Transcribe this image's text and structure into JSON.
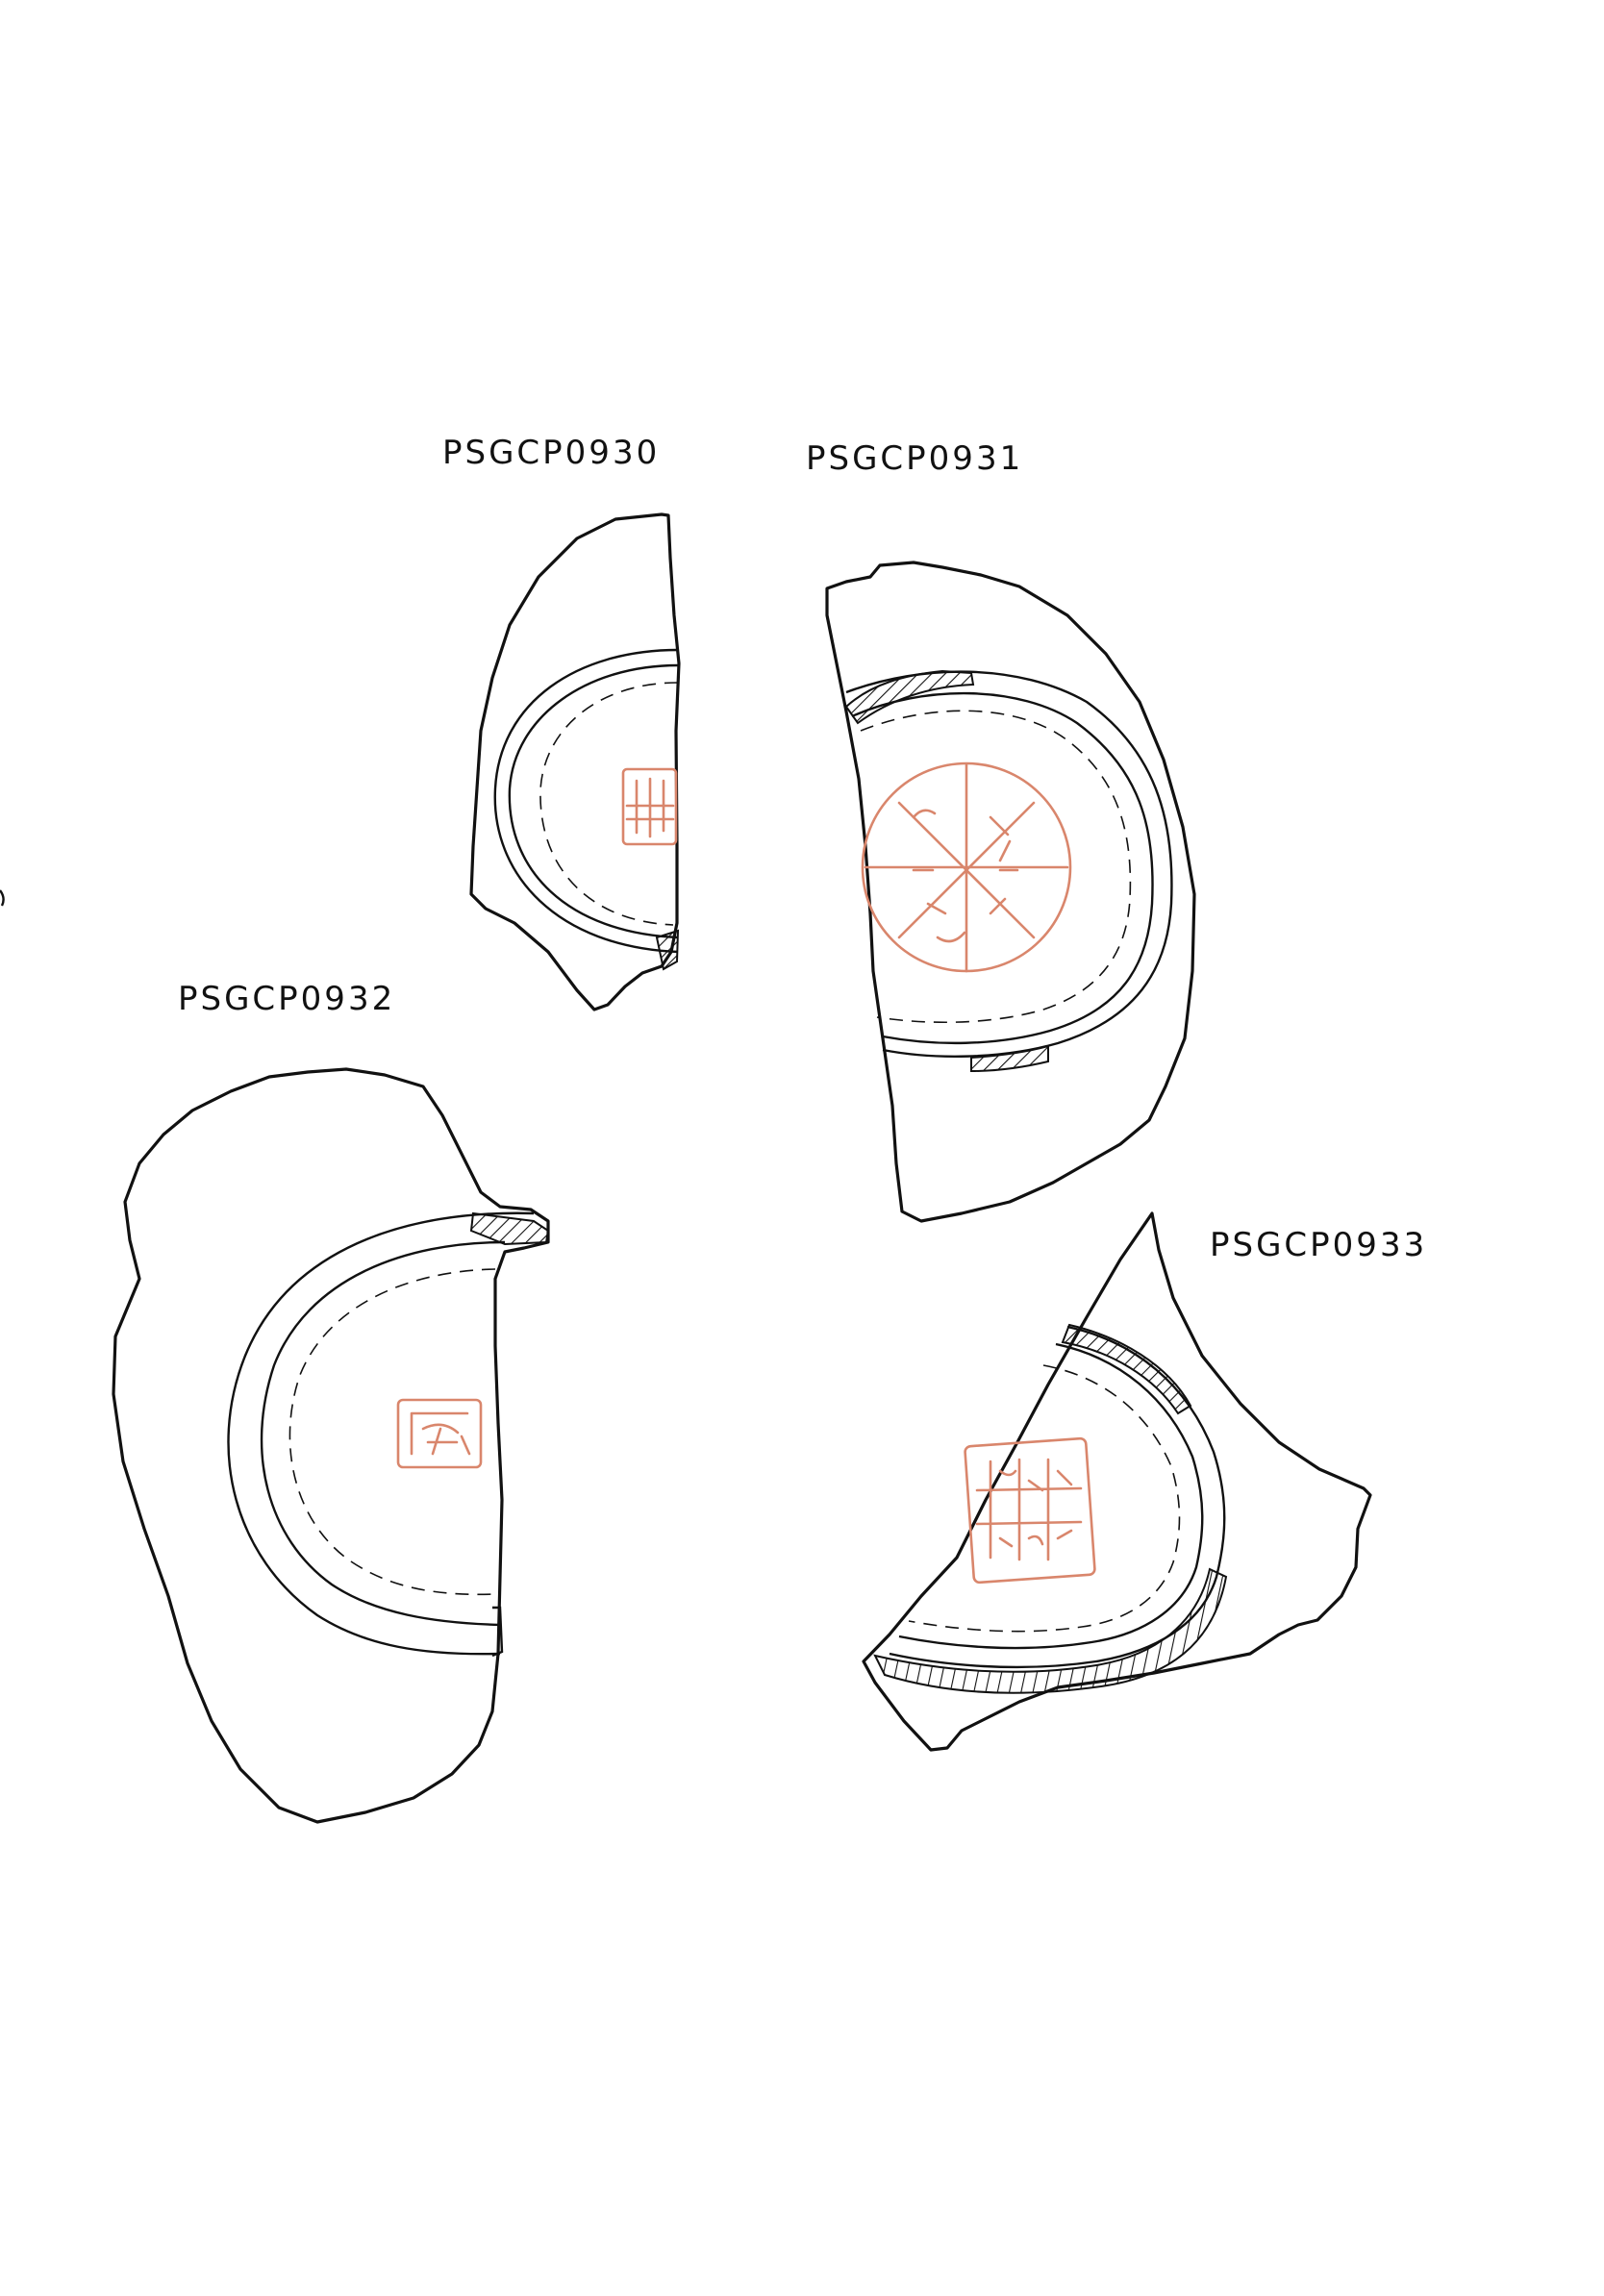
{
  "sheet": {
    "ink_color": "#111111",
    "stamp_color": "#d9866c",
    "background": "#ffffff"
  },
  "sherds": [
    {
      "id": "PSGCP0930",
      "label": "PSGCP0930"
    },
    {
      "id": "PSGCP0931",
      "label": "PSGCP0931"
    },
    {
      "id": "PSGCP0932",
      "label": "PSGCP0932"
    },
    {
      "id": "PSGCP0933",
      "label": "PSGCP0933"
    }
  ]
}
